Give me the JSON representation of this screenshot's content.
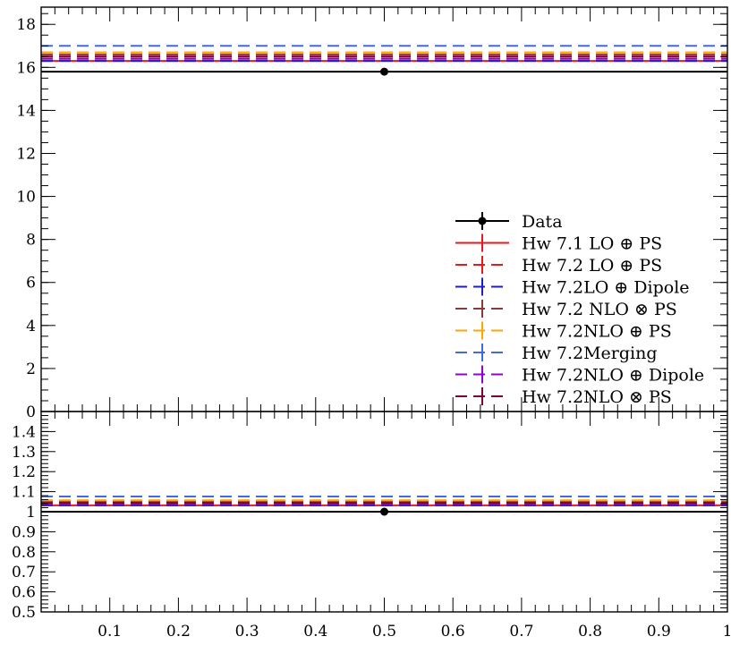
{
  "chart_data": [
    {
      "panel": "main",
      "type": "line",
      "title": "",
      "xlabel": "",
      "ylabel": "",
      "xlim": [
        0.0,
        1.0
      ],
      "ylim": [
        0,
        18.8
      ],
      "x_ticks": [
        0.1,
        0.2,
        0.3,
        0.4,
        0.5,
        0.6,
        0.7,
        0.8,
        0.9,
        1
      ],
      "y_ticks": [
        0,
        2,
        4,
        6,
        8,
        10,
        12,
        14,
        16,
        18
      ],
      "grid": false,
      "legend_position": "right",
      "series": [
        {
          "name": "Data",
          "x": [
            0.5
          ],
          "values": [
            15.8
          ],
          "xerr": [
            0.5
          ],
          "color": "#000000",
          "dash": "solid",
          "marker": "dot"
        },
        {
          "name": "Hw 7.1 LO ⊕ PS",
          "x": [
            0.5
          ],
          "values": [
            16.3
          ],
          "xerr": [
            0.5
          ],
          "color": "#e41a1c",
          "dash": "solid"
        },
        {
          "name": "Hw 7.2 LO ⊕ PS",
          "x": [
            0.5
          ],
          "values": [
            16.5
          ],
          "xerr": [
            0.5
          ],
          "color": "#e41a1c",
          "dash": "dashed"
        },
        {
          "name": "Hw 7.2LO ⊕ Dipole",
          "x": [
            0.5
          ],
          "values": [
            16.3
          ],
          "xerr": [
            0.5
          ],
          "color": "#1f1fbf",
          "dash": "dashed"
        },
        {
          "name": "Hw 7.2 NLO ⊗ PS",
          "x": [
            0.5
          ],
          "values": [
            16.6
          ],
          "xerr": [
            0.5
          ],
          "color": "#8b3a3a",
          "dash": "dashed"
        },
        {
          "name": "Hw 7.2NLO ⊕ PS",
          "x": [
            0.5
          ],
          "values": [
            16.7
          ],
          "xerr": [
            0.5
          ],
          "color": "#ffa500",
          "dash": "dashed"
        },
        {
          "name": "Hw 7.2Merging",
          "x": [
            0.5
          ],
          "values": [
            17.0
          ],
          "xerr": [
            0.5
          ],
          "color": "#4169e1",
          "dash": "dashed"
        },
        {
          "name": "Hw 7.2NLO ⊕ Dipole",
          "x": [
            0.5
          ],
          "values": [
            16.4
          ],
          "xerr": [
            0.5
          ],
          "color": "#9400d3",
          "dash": "dashed"
        },
        {
          "name": "Hw 7.2NLO ⊗ PS",
          "x": [
            0.5
          ],
          "values": [
            16.5
          ],
          "xerr": [
            0.5
          ],
          "color": "#800040",
          "dash": "dashed"
        }
      ]
    },
    {
      "panel": "ratio",
      "type": "line",
      "title": "",
      "xlabel": "",
      "ylabel": "",
      "xlim": [
        0.0,
        1.0
      ],
      "ylim": [
        0.5,
        1.5
      ],
      "x_ticks": [
        0.1,
        0.2,
        0.3,
        0.4,
        0.5,
        0.6,
        0.7,
        0.8,
        0.9,
        1
      ],
      "y_ticks": [
        0.5,
        0.6,
        0.7,
        0.8,
        0.9,
        1,
        1.1,
        1.2,
        1.3,
        1.4
      ],
      "grid": false,
      "series": [
        {
          "name": "Data",
          "x": [
            0.5
          ],
          "values": [
            1.0
          ],
          "xerr": [
            0.5
          ],
          "color": "#000000",
          "dash": "solid",
          "marker": "dot"
        },
        {
          "name": "Hw 7.1 LO ⊕ PS",
          "x": [
            0.5
          ],
          "values": [
            1.032
          ],
          "xerr": [
            0.5
          ],
          "color": "#e41a1c",
          "dash": "solid"
        },
        {
          "name": "Hw 7.2 LO ⊕ PS",
          "x": [
            0.5
          ],
          "values": [
            1.045
          ],
          "xerr": [
            0.5
          ],
          "color": "#e41a1c",
          "dash": "dashed"
        },
        {
          "name": "Hw 7.2LO ⊕ Dipole",
          "x": [
            0.5
          ],
          "values": [
            1.032
          ],
          "xerr": [
            0.5
          ],
          "color": "#1f1fbf",
          "dash": "dashed"
        },
        {
          "name": "Hw 7.2 NLO ⊗ PS",
          "x": [
            0.5
          ],
          "values": [
            1.05
          ],
          "xerr": [
            0.5
          ],
          "color": "#8b3a3a",
          "dash": "dashed"
        },
        {
          "name": "Hw 7.2NLO ⊕ PS",
          "x": [
            0.5
          ],
          "values": [
            1.057
          ],
          "xerr": [
            0.5
          ],
          "color": "#ffa500",
          "dash": "dashed"
        },
        {
          "name": "Hw 7.2Merging",
          "x": [
            0.5
          ],
          "values": [
            1.076
          ],
          "xerr": [
            0.5
          ],
          "color": "#4169e1",
          "dash": "dashed"
        },
        {
          "name": "Hw 7.2NLO ⊕ Dipole",
          "x": [
            0.5
          ],
          "values": [
            1.038
          ],
          "xerr": [
            0.5
          ],
          "color": "#9400d3",
          "dash": "dashed"
        },
        {
          "name": "Hw 7.2NLO ⊗ PS",
          "x": [
            0.5
          ],
          "values": [
            1.044
          ],
          "xerr": [
            0.5
          ],
          "color": "#800040",
          "dash": "dashed"
        }
      ]
    }
  ]
}
